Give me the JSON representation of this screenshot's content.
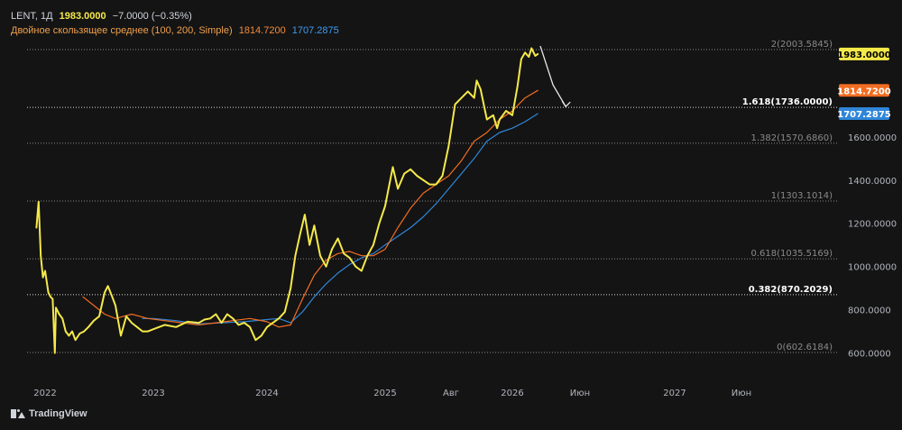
{
  "legend": {
    "ticker": "LENT, 1Д",
    "price": "1983.0000",
    "change": "−7.0000 (−0.35%)",
    "ma_name": "Двойное скользящее среднее (100, 200, Simple)",
    "ma1_value": "1814.7200",
    "ma2_value": "1707.2875"
  },
  "branding": {
    "name": "TradingView"
  },
  "colors": {
    "background": "#141414",
    "price_line": "#f5e94a",
    "ma_fast": "#f26d21",
    "ma_slow": "#2f86d9",
    "fib_line": "#8a8a8a",
    "axis_text": "#b2b5be"
  },
  "chart_data": {
    "type": "line",
    "x_ticks": [
      "2022",
      "2023",
      "2024",
      "2025",
      "Авг",
      "2026",
      "Июн",
      "2027",
      "Июн"
    ],
    "y_ticks": [
      600,
      800,
      1000,
      1200,
      1400,
      1600
    ],
    "y_tick_labels": [
      "600.0000",
      "800.0000",
      "1000.0000",
      "1200.0000",
      "1400.0000",
      "1600.0000"
    ],
    "ylim": [
      500,
      2170
    ],
    "fib_levels": [
      {
        "label": "2(2003.5845)",
        "value": 2003.5845,
        "emphasis": false
      },
      {
        "label": "1.618(1736.0000)",
        "value": 1736.0,
        "emphasis": true
      },
      {
        "label": "1.382(1570.6860)",
        "value": 1570.686,
        "emphasis": false
      },
      {
        "label": "1(1303.1014)",
        "value": 1303.1014,
        "emphasis": false
      },
      {
        "label": "0.618(1035.5169)",
        "value": 1035.5169,
        "emphasis": false
      },
      {
        "label": "0.382(870.2029)",
        "value": 870.2029,
        "emphasis": true
      },
      {
        "label": "0(602.6184)",
        "value": 602.6184,
        "emphasis": false
      }
    ],
    "price_badges": [
      {
        "label": "1983.0000",
        "value": 1983.0,
        "color": "#f5e94a",
        "text_color": "#000000"
      },
      {
        "label": "1814.7200",
        "value": 1814.72,
        "color": "#f26d21",
        "text_color": "#ffffff"
      },
      {
        "label": "1707.2875",
        "value": 1707.2875,
        "color": "#2f86d9",
        "text_color": "#ffffff"
      }
    ],
    "series": [
      {
        "key": "price",
        "points": [
          [
            2021.92,
            1180
          ],
          [
            2021.94,
            1300
          ],
          [
            2021.96,
            1050
          ],
          [
            2021.98,
            950
          ],
          [
            2022.0,
            980
          ],
          [
            2022.03,
            880
          ],
          [
            2022.05,
            860
          ],
          [
            2022.07,
            850
          ],
          [
            2022.09,
            600
          ],
          [
            2022.1,
            810
          ],
          [
            2022.13,
            780
          ],
          [
            2022.16,
            760
          ],
          [
            2022.19,
            700
          ],
          [
            2022.22,
            680
          ],
          [
            2022.25,
            700
          ],
          [
            2022.28,
            660
          ],
          [
            2022.32,
            690
          ],
          [
            2022.36,
            700
          ],
          [
            2022.4,
            720
          ],
          [
            2022.45,
            750
          ],
          [
            2022.5,
            770
          ],
          [
            2022.55,
            880
          ],
          [
            2022.58,
            910
          ],
          [
            2022.62,
            860
          ],
          [
            2022.65,
            820
          ],
          [
            2022.7,
            680
          ],
          [
            2022.75,
            770
          ],
          [
            2022.8,
            740
          ],
          [
            2022.85,
            720
          ],
          [
            2022.9,
            700
          ],
          [
            2022.95,
            700
          ],
          [
            2023.0,
            710
          ],
          [
            2023.1,
            730
          ],
          [
            2023.2,
            720
          ],
          [
            2023.3,
            745
          ],
          [
            2023.4,
            740
          ],
          [
            2023.45,
            755
          ],
          [
            2023.5,
            760
          ],
          [
            2023.55,
            780
          ],
          [
            2023.6,
            740
          ],
          [
            2023.65,
            780
          ],
          [
            2023.7,
            760
          ],
          [
            2023.75,
            730
          ],
          [
            2023.8,
            740
          ],
          [
            2023.85,
            720
          ],
          [
            2023.9,
            660
          ],
          [
            2023.95,
            680
          ],
          [
            2024.0,
            720
          ],
          [
            2024.05,
            740
          ],
          [
            2024.1,
            760
          ],
          [
            2024.15,
            790
          ],
          [
            2024.2,
            900
          ],
          [
            2024.24,
            1050
          ],
          [
            2024.28,
            1150
          ],
          [
            2024.32,
            1240
          ],
          [
            2024.36,
            1100
          ],
          [
            2024.4,
            1190
          ],
          [
            2024.45,
            1050
          ],
          [
            2024.5,
            1000
          ],
          [
            2024.55,
            1080
          ],
          [
            2024.6,
            1130
          ],
          [
            2024.65,
            1060
          ],
          [
            2024.7,
            1040
          ],
          [
            2024.75,
            1000
          ],
          [
            2024.8,
            980
          ],
          [
            2024.85,
            1050
          ],
          [
            2024.9,
            1100
          ],
          [
            2024.95,
            1200
          ],
          [
            2025.0,
            1280
          ],
          [
            2025.03,
            1370
          ],
          [
            2025.06,
            1460
          ],
          [
            2025.1,
            1360
          ],
          [
            2025.15,
            1430
          ],
          [
            2025.2,
            1450
          ],
          [
            2025.25,
            1420
          ],
          [
            2025.3,
            1400
          ],
          [
            2025.35,
            1380
          ],
          [
            2025.4,
            1380
          ],
          [
            2025.45,
            1420
          ],
          [
            2025.5,
            1560
          ],
          [
            2025.55,
            1750
          ],
          [
            2025.6,
            1780
          ],
          [
            2025.65,
            1810
          ],
          [
            2025.7,
            1780
          ],
          [
            2025.72,
            1860
          ],
          [
            2025.75,
            1820
          ],
          [
            2025.8,
            1680
          ],
          [
            2025.85,
            1700
          ],
          [
            2025.88,
            1640
          ],
          [
            2025.9,
            1680
          ],
          [
            2025.95,
            1720
          ],
          [
            2026.0,
            1700
          ],
          [
            2026.04,
            1830
          ],
          [
            2026.07,
            1960
          ],
          [
            2026.1,
            1990
          ],
          [
            2026.13,
            1970
          ],
          [
            2026.15,
            2010
          ],
          [
            2026.18,
            1975
          ],
          [
            2026.2,
            1983
          ]
        ]
      },
      {
        "key": "ma_fast",
        "points": [
          [
            2022.35,
            860
          ],
          [
            2022.45,
            820
          ],
          [
            2022.55,
            780
          ],
          [
            2022.65,
            760
          ],
          [
            2022.8,
            780
          ],
          [
            2022.95,
            760
          ],
          [
            2023.1,
            750
          ],
          [
            2023.25,
            740
          ],
          [
            2023.4,
            730
          ],
          [
            2023.55,
            740
          ],
          [
            2023.7,
            750
          ],
          [
            2023.85,
            760
          ],
          [
            2024.0,
            745
          ],
          [
            2024.1,
            720
          ],
          [
            2024.2,
            730
          ],
          [
            2024.3,
            850
          ],
          [
            2024.4,
            960
          ],
          [
            2024.5,
            1030
          ],
          [
            2024.6,
            1060
          ],
          [
            2024.7,
            1070
          ],
          [
            2024.8,
            1050
          ],
          [
            2024.9,
            1050
          ],
          [
            2025.0,
            1080
          ],
          [
            2025.1,
            1180
          ],
          [
            2025.2,
            1270
          ],
          [
            2025.3,
            1340
          ],
          [
            2025.4,
            1380
          ],
          [
            2025.5,
            1420
          ],
          [
            2025.6,
            1490
          ],
          [
            2025.7,
            1580
          ],
          [
            2025.8,
            1620
          ],
          [
            2025.9,
            1680
          ],
          [
            2026.0,
            1720
          ],
          [
            2026.1,
            1780
          ],
          [
            2026.2,
            1814.72
          ]
        ]
      },
      {
        "key": "ma_slow",
        "points": [
          [
            2022.9,
            760
          ],
          [
            2023.0,
            760
          ],
          [
            2023.2,
            750
          ],
          [
            2023.4,
            735
          ],
          [
            2023.6,
            740
          ],
          [
            2023.8,
            745
          ],
          [
            2024.0,
            755
          ],
          [
            2024.1,
            760
          ],
          [
            2024.2,
            740
          ],
          [
            2024.3,
            790
          ],
          [
            2024.4,
            860
          ],
          [
            2024.5,
            920
          ],
          [
            2024.6,
            970
          ],
          [
            2024.7,
            1010
          ],
          [
            2024.8,
            1040
          ],
          [
            2024.9,
            1060
          ],
          [
            2025.0,
            1100
          ],
          [
            2025.1,
            1140
          ],
          [
            2025.2,
            1180
          ],
          [
            2025.3,
            1230
          ],
          [
            2025.4,
            1290
          ],
          [
            2025.5,
            1360
          ],
          [
            2025.6,
            1430
          ],
          [
            2025.7,
            1500
          ],
          [
            2025.8,
            1580
          ],
          [
            2025.9,
            1620
          ],
          [
            2026.0,
            1640
          ],
          [
            2026.1,
            1670
          ],
          [
            2026.2,
            1707.29
          ]
        ]
      }
    ],
    "projection": [
      [
        2026.22,
        2020
      ],
      [
        2026.32,
        1840
      ],
      [
        2026.42,
        1740
      ]
    ]
  }
}
